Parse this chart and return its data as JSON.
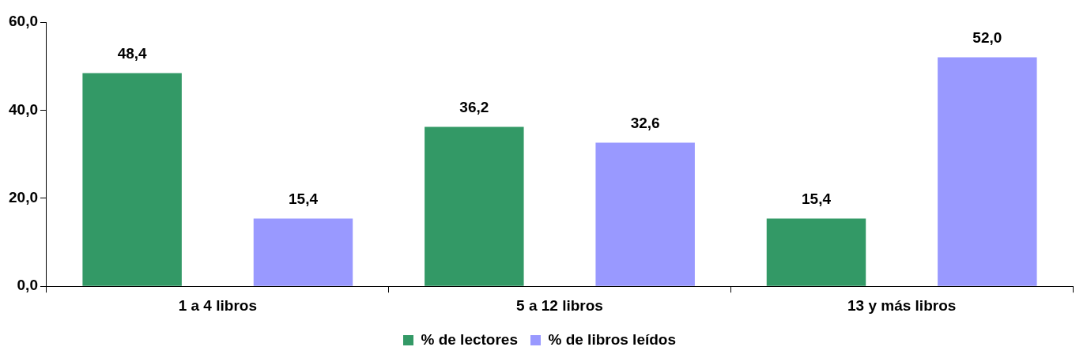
{
  "chart_data": {
    "type": "bar",
    "categories": [
      "1 a 4 libros",
      "5 a 12 libros",
      "13 y más libros"
    ],
    "series": [
      {
        "name": "% de lectores",
        "color": "#339966",
        "values": [
          48.4,
          36.2,
          15.4
        ],
        "value_labels": [
          "48,4",
          "36,2",
          "15,4"
        ]
      },
      {
        "name": "% de libros leídos",
        "color": "#9999ff",
        "values": [
          15.4,
          32.6,
          52.0
        ],
        "value_labels": [
          "15,4",
          "32,6",
          "52,0"
        ]
      }
    ],
    "ylim": [
      0,
      60
    ],
    "yticks": [
      {
        "value": 0,
        "label": "0,0"
      },
      {
        "value": 20,
        "label": "20,0"
      },
      {
        "value": 40,
        "label": "40,0"
      },
      {
        "value": 60,
        "label": "60,0"
      }
    ],
    "grid": false,
    "legend": "bottom"
  }
}
